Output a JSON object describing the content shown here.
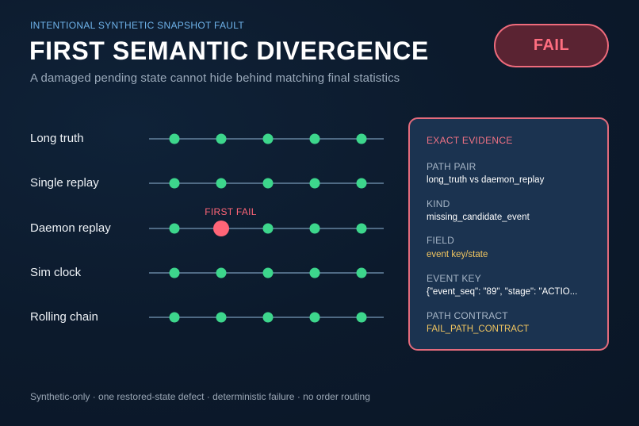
{
  "header": {
    "kicker": "INTENTIONAL SYNTHETIC SNAPSHOT FAULT",
    "title": "FIRST SEMANTIC DIVERGENCE",
    "subtitle": "A damaged pending state cannot hide behind matching final statistics",
    "status_badge": "FAIL"
  },
  "diagram": {
    "first_fail_label": "FIRST FAIL",
    "checkpoints_per_path": 5,
    "paths": [
      {
        "label": "Long truth",
        "fail_index": null
      },
      {
        "label": "Single replay",
        "fail_index": null
      },
      {
        "label": "Daemon replay",
        "fail_index": 1
      },
      {
        "label": "Sim clock",
        "fail_index": null
      },
      {
        "label": "Rolling chain",
        "fail_index": null
      }
    ],
    "colors": {
      "ok": "#3dd68c",
      "fail": "#ff6577",
      "track": "#4f6a84"
    }
  },
  "evidence": {
    "heading": "EXACT EVIDENCE",
    "fields": [
      {
        "key": "PATH PAIR",
        "value": "long_truth vs daemon_replay",
        "tone": "normal"
      },
      {
        "key": "KIND",
        "value": "missing_candidate_event",
        "tone": "normal"
      },
      {
        "key": "FIELD",
        "value": "event key/state",
        "tone": "warn"
      },
      {
        "key": "EVENT KEY",
        "value": "{\"event_seq\": \"89\", \"stage\": \"ACTIO...",
        "tone": "normal"
      },
      {
        "key": "PATH CONTRACT",
        "value": "FAIL_PATH_CONTRACT",
        "tone": "warn"
      }
    ]
  },
  "footer": "Synthetic-only · one restored-state defect · deterministic failure · no order routing"
}
